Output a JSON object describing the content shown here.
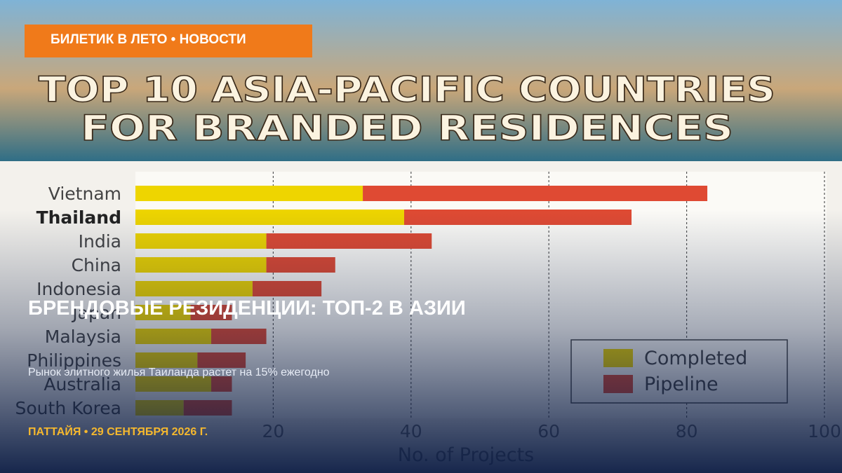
{
  "badge": "БИЛЕТИК В ЛЕТО • НОВОСТИ",
  "headline": "БРЕНДОВЫЕ РЕЗИДЕНЦИИ: ТОП-2 В АЗИИ",
  "subtitle": "Рынок элитного жилья Таиланда растет на 15% ежегодно",
  "footer": "ПАТТАЙЯ • 29 СЕНТЯБРЯ 2026 Г.",
  "chart_data": {
    "type": "stacked-barh",
    "title_lines": [
      "TOP 10 ASIA-PACIFIC COUNTRIES",
      "FOR BRANDED RESIDENCES"
    ],
    "categories": [
      "Vietnam",
      "Thailand",
      "India",
      "China",
      "Indonesia",
      "Japan",
      "Malaysia",
      "Philippines",
      "Australia",
      "South Korea"
    ],
    "highlight": "Thailand",
    "series": [
      {
        "name": "Completed",
        "color": "#eed500",
        "values": [
          33,
          39,
          19,
          19,
          17,
          8,
          11,
          9,
          11,
          7
        ]
      },
      {
        "name": "Pipeline",
        "color": "#df4a33",
        "values": [
          50,
          33,
          24,
          10,
          10,
          6,
          8,
          7,
          3,
          7
        ]
      }
    ],
    "xlabel": "No. of Projects",
    "xlim": [
      0,
      100
    ],
    "xticks": [
      20,
      40,
      60,
      80,
      100
    ],
    "grid": true,
    "legend": "lower right"
  }
}
